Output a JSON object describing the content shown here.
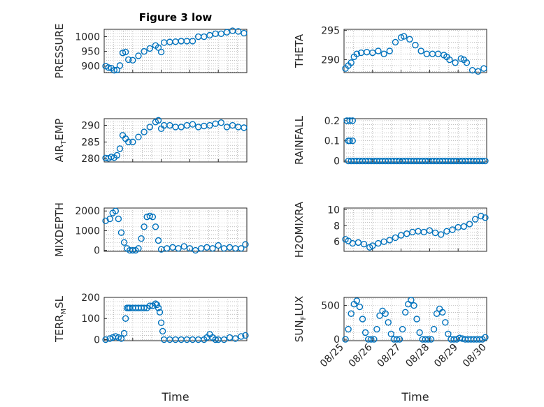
{
  "figure": {
    "title": "Figure 3 low",
    "x_axis_label": "Time",
    "x_tick_labels": [
      "08/25",
      "08/26",
      "08/27",
      "08/28",
      "08/29",
      "08/30"
    ]
  },
  "colors": {
    "marker": "#0072BD",
    "axes": "#262626",
    "grid": "#9a9a9a"
  },
  "chart_data": [
    {
      "type": "scatter",
      "ylabel": "PRESSURE",
      "ylim": [
        878,
        1025
      ],
      "yticks": [
        900,
        950,
        1000
      ],
      "xlim": [
        0,
        5
      ],
      "x_tick_labels_shown": false,
      "grid": true,
      "series": [
        {
          "x": [
            0.05,
            0.15,
            0.25,
            0.35,
            0.45,
            0.55,
            0.65,
            0.75,
            0.85,
            1.0,
            1.2,
            1.4,
            1.6,
            1.8,
            1.9,
            2.0,
            2.1,
            2.3,
            2.5,
            2.7,
            2.9,
            3.1,
            3.3,
            3.5,
            3.7,
            3.9,
            4.1,
            4.3,
            4.5,
            4.7,
            4.9
          ],
          "y": [
            900,
            895,
            893,
            886,
            887,
            902,
            945,
            948,
            922,
            920,
            935,
            950,
            960,
            970,
            963,
            948,
            980,
            982,
            983,
            985,
            985,
            985,
            1000,
            1000,
            1005,
            1010,
            1010,
            1015,
            1020,
            1018,
            1012
          ]
        }
      ]
    },
    {
      "type": "scatter",
      "ylabel": "THETA",
      "ylim": [
        287.8,
        295.2
      ],
      "yticks": [
        290,
        295
      ],
      "xlim": [
        0,
        5
      ],
      "x_tick_labels_shown": false,
      "grid": true,
      "series": [
        {
          "x": [
            0.05,
            0.15,
            0.25,
            0.35,
            0.45,
            0.6,
            0.8,
            1.0,
            1.2,
            1.4,
            1.6,
            1.8,
            2.0,
            2.1,
            2.3,
            2.5,
            2.7,
            2.9,
            3.1,
            3.3,
            3.5,
            3.6,
            3.7,
            3.9,
            4.1,
            4.2,
            4.3,
            4.5,
            4.7,
            4.9
          ],
          "y": [
            288.5,
            289,
            289.5,
            290.5,
            291,
            291.2,
            291.3,
            291.2,
            291.5,
            291,
            291.5,
            293,
            293.8,
            294,
            293.5,
            292.5,
            291.5,
            291,
            291,
            291,
            290.8,
            290.5,
            290,
            289.5,
            290.2,
            290,
            289.5,
            288.2,
            288,
            288.5
          ]
        }
      ]
    },
    {
      "type": "scatter",
      "ylabel": "AIR_TEMP",
      "ylim": [
        279,
        292
      ],
      "yticks": [
        280,
        285,
        290
      ],
      "xlim": [
        0,
        5
      ],
      "x_tick_labels_shown": false,
      "grid": true,
      "series": [
        {
          "x": [
            0.05,
            0.15,
            0.25,
            0.35,
            0.45,
            0.55,
            0.65,
            0.75,
            0.85,
            1.0,
            1.2,
            1.4,
            1.6,
            1.8,
            1.9,
            2.0,
            2.1,
            2.3,
            2.5,
            2.7,
            2.9,
            3.1,
            3.3,
            3.5,
            3.7,
            3.9,
            4.1,
            4.3,
            4.5,
            4.7,
            4.9
          ],
          "y": [
            280.2,
            280.1,
            280.5,
            280.3,
            281,
            283,
            287,
            286,
            285,
            285,
            286.5,
            288,
            289.5,
            291,
            291.5,
            289,
            290,
            290,
            289.5,
            289.5,
            290,
            290.3,
            289.5,
            289.8,
            290,
            290.5,
            290.8,
            289.5,
            290,
            289.5,
            289.3
          ]
        }
      ]
    },
    {
      "type": "scatter",
      "ylabel": "RAINFALL",
      "ylim": [
        -0.005,
        0.21
      ],
      "yticks": [
        0,
        0.1,
        0.2
      ],
      "xlim": [
        0,
        5
      ],
      "x_tick_labels_shown": false,
      "grid": true,
      "series": [
        {
          "x": [
            0.1,
            0.2,
            0.3,
            0.15,
            0.2,
            0.3,
            0.15,
            0.25,
            0.35,
            0.45,
            0.55,
            0.65,
            0.75,
            0.85,
            0.95,
            1.05,
            1.15,
            1.25,
            1.35,
            1.45,
            1.55,
            1.65,
            1.75,
            1.85,
            1.95,
            2.05,
            2.15,
            2.25,
            2.35,
            2.45,
            2.55,
            2.65,
            2.75,
            2.85,
            2.95,
            3.05,
            3.15,
            3.25,
            3.35,
            3.45,
            3.55,
            3.65,
            3.75,
            3.85,
            3.95,
            4.05,
            4.15,
            4.25,
            4.35,
            4.45,
            4.55,
            4.65,
            4.75,
            4.85,
            4.95
          ],
          "y": [
            0.2,
            0.2,
            0.2,
            0.1,
            0.1,
            0.1,
            0,
            0,
            0,
            0,
            0,
            0,
            0,
            0,
            0,
            0,
            0,
            0,
            0,
            0,
            0,
            0,
            0,
            0,
            0,
            0,
            0,
            0,
            0,
            0,
            0,
            0,
            0,
            0,
            0,
            0,
            0,
            0,
            0,
            0,
            0,
            0,
            0,
            0,
            0,
            0,
            0,
            0,
            0,
            0,
            0,
            0,
            0,
            0,
            0
          ]
        }
      ]
    },
    {
      "type": "scatter",
      "ylabel": "MIXDEPTH",
      "ylim": [
        -50,
        2150
      ],
      "yticks": [
        0,
        1000,
        2000
      ],
      "xlim": [
        0,
        5
      ],
      "x_tick_labels_shown": false,
      "grid": true,
      "series": [
        {
          "x": [
            0.05,
            0.2,
            0.3,
            0.4,
            0.5,
            0.6,
            0.7,
            0.8,
            0.9,
            1.0,
            1.1,
            1.2,
            1.3,
            1.4,
            1.5,
            1.6,
            1.7,
            1.8,
            1.9,
            2.0,
            2.2,
            2.4,
            2.6,
            2.8,
            3.0,
            3.2,
            3.4,
            3.6,
            3.8,
            4.0,
            4.2,
            4.4,
            4.6,
            4.8,
            4.95
          ],
          "y": [
            1500,
            1600,
            1900,
            2000,
            1600,
            900,
            400,
            100,
            0,
            0,
            0,
            100,
            600,
            1200,
            1700,
            1750,
            1700,
            1200,
            500,
            50,
            100,
            150,
            100,
            200,
            100,
            0,
            100,
            150,
            100,
            250,
            100,
            150,
            100,
            100,
            300
          ]
        }
      ]
    },
    {
      "type": "scatter",
      "ylabel": "H2OMIXRA",
      "ylim": [
        4.8,
        10.2
      ],
      "yticks": [
        6,
        8,
        10
      ],
      "xlim": [
        0,
        5
      ],
      "x_tick_labels_shown": false,
      "grid": true,
      "series": [
        {
          "x": [
            0.05,
            0.15,
            0.3,
            0.5,
            0.7,
            0.9,
            1.0,
            1.2,
            1.4,
            1.6,
            1.8,
            2.0,
            2.2,
            2.4,
            2.6,
            2.8,
            3.0,
            3.2,
            3.4,
            3.6,
            3.8,
            4.0,
            4.2,
            4.4,
            4.6,
            4.8,
            4.95
          ],
          "y": [
            6.3,
            6.1,
            5.8,
            5.9,
            5.7,
            5.3,
            5.5,
            5.8,
            6.0,
            6.2,
            6.5,
            6.8,
            7.0,
            7.2,
            7.3,
            7.2,
            7.4,
            7.1,
            6.9,
            7.3,
            7.5,
            7.8,
            7.9,
            8.2,
            8.8,
            9.2,
            9.0
          ]
        }
      ]
    },
    {
      "type": "scatter",
      "ylabel": "TERR_MSL",
      "ylim": [
        -5,
        200
      ],
      "yticks": [
        0,
        100,
        200
      ],
      "xlim": [
        0,
        5
      ],
      "x_tick_labels_shown": false,
      "grid": true,
      "series": [
        {
          "x": [
            0.05,
            0.2,
            0.3,
            0.4,
            0.5,
            0.6,
            0.7,
            0.75,
            0.8,
            0.85,
            0.9,
            1.0,
            1.1,
            1.2,
            1.3,
            1.4,
            1.5,
            1.6,
            1.7,
            1.8,
            1.85,
            1.9,
            1.95,
            2.0,
            2.05,
            2.1,
            2.3,
            2.5,
            2.7,
            2.9,
            3.1,
            3.3,
            3.5,
            3.6,
            3.7,
            3.8,
            3.9,
            4.0,
            4.2,
            4.4,
            4.6,
            4.8,
            4.95
          ],
          "y": [
            0,
            5,
            10,
            15,
            10,
            5,
            30,
            100,
            150,
            150,
            150,
            150,
            150,
            150,
            150,
            150,
            150,
            160,
            160,
            170,
            165,
            150,
            130,
            80,
            40,
            0,
            0,
            0,
            0,
            0,
            0,
            0,
            0,
            10,
            25,
            10,
            0,
            0,
            0,
            10,
            5,
            15,
            20
          ]
        }
      ]
    },
    {
      "type": "scatter",
      "ylabel": "SUN_FLUX",
      "ylim": [
        -20,
        620
      ],
      "yticks": [
        0,
        500
      ],
      "xlim": [
        0,
        5
      ],
      "x_tick_labels_shown": true,
      "grid": true,
      "series": [
        {
          "x": [
            0.05,
            0.15,
            0.25,
            0.35,
            0.45,
            0.55,
            0.65,
            0.75,
            0.85,
            0.95,
            1.05,
            1.15,
            1.25,
            1.35,
            1.45,
            1.55,
            1.65,
            1.75,
            1.85,
            1.95,
            2.05,
            2.15,
            2.25,
            2.35,
            2.45,
            2.55,
            2.65,
            2.75,
            2.85,
            2.95,
            3.05,
            3.15,
            3.25,
            3.35,
            3.45,
            3.55,
            3.65,
            3.75,
            3.85,
            3.95,
            4.05,
            4.15,
            4.25,
            4.35,
            4.45,
            4.55,
            4.65,
            4.75,
            4.85,
            4.95
          ],
          "y": [
            0,
            150,
            380,
            520,
            570,
            480,
            300,
            100,
            0,
            0,
            0,
            150,
            350,
            420,
            380,
            250,
            80,
            0,
            0,
            0,
            150,
            400,
            520,
            580,
            500,
            300,
            100,
            0,
            0,
            0,
            0,
            150,
            380,
            450,
            400,
            250,
            80,
            0,
            0,
            0,
            20,
            10,
            0,
            0,
            0,
            0,
            0,
            0,
            0,
            30
          ]
        }
      ]
    }
  ]
}
